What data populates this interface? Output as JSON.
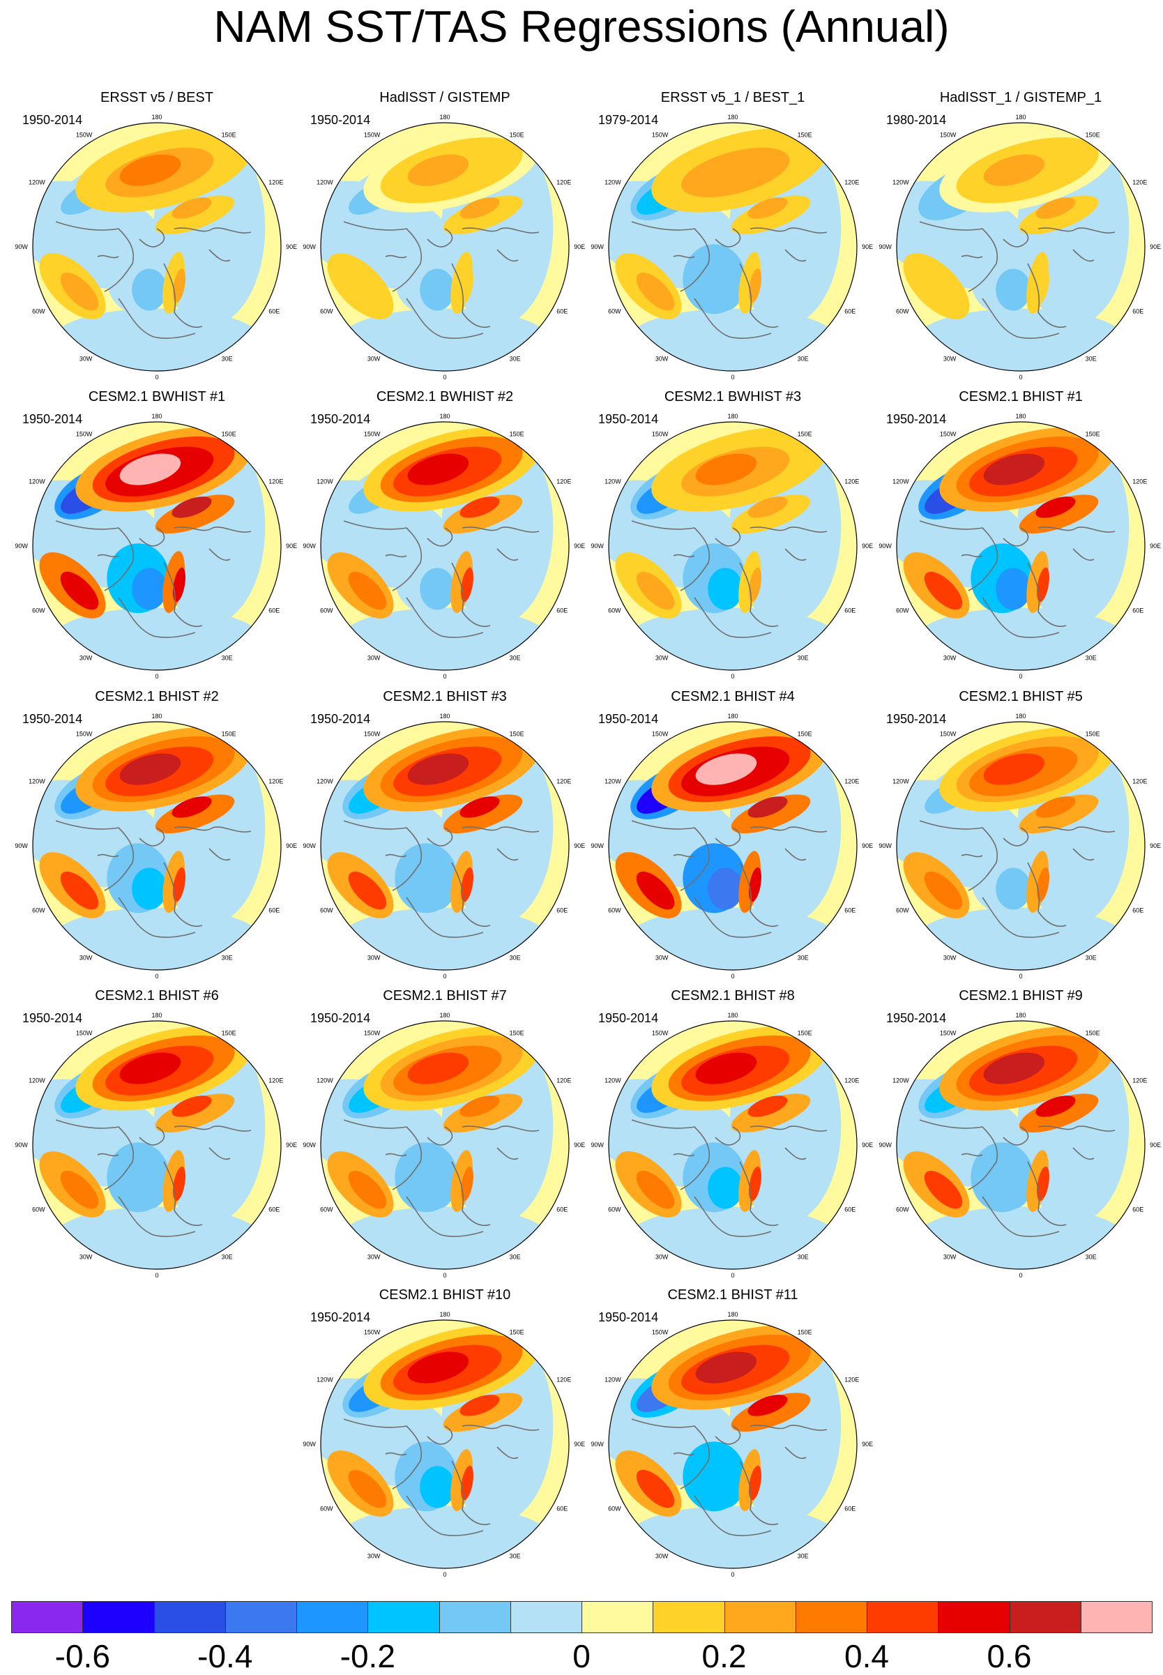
{
  "title": "NAM SST/TAS Regressions (Annual)",
  "lon_labels": {
    "top": "180",
    "bottom": "0",
    "lon150w": "150W",
    "lon150e": "150E",
    "lon120w": "120W",
    "lon120e": "120E",
    "lon90w": "90W",
    "lon90e": "90E",
    "lon60w": "60W",
    "lon60e": "60E",
    "lon30w": "30W",
    "lon30e": "30E"
  },
  "colors": {
    "land_coast": "#6f6f6f",
    "outline": "#000000",
    "base": "#fffa9e"
  },
  "panels": [
    {
      "title": "ERSST v5 / BEST",
      "period": "1950-2014",
      "amplitude": 0.35,
      "ao": -0.1
    },
    {
      "title": "HadISST / GISTEMP",
      "period": "1950-2014",
      "amplitude": 0.25,
      "ao": -0.1
    },
    {
      "title": "ERSST v5_1 / BEST_1",
      "period": "1979-2014",
      "amplitude": 0.3,
      "ao": -0.15
    },
    {
      "title": "HadISST_1 / GISTEMP_1",
      "period": "1980-2014",
      "amplitude": 0.25,
      "ao": -0.12
    },
    {
      "title": "CESM2.1 BWHIST #1",
      "period": "1950-2014",
      "amplitude": 0.75,
      "ao": -0.35
    },
    {
      "title": "CESM2.1 BWHIST #2",
      "period": "1950-2014",
      "amplitude": 0.55,
      "ao": -0.1
    },
    {
      "title": "CESM2.1 BWHIST #3",
      "period": "1950-2014",
      "amplitude": 0.35,
      "ao": -0.2
    },
    {
      "title": "CESM2.1 BHIST #1",
      "period": "1950-2014",
      "amplitude": 0.65,
      "ao": -0.35
    },
    {
      "title": "CESM2.1 BHIST #2",
      "period": "1950-2014",
      "amplitude": 0.65,
      "ao": -0.2
    },
    {
      "title": "CESM2.1 BHIST #3",
      "period": "1950-2014",
      "amplitude": 0.65,
      "ao": -0.15
    },
    {
      "title": "CESM2.1 BHIST #4",
      "period": "1950-2014",
      "amplitude": 0.75,
      "ao": -0.4
    },
    {
      "title": "CESM2.1 BHIST #5",
      "period": "1950-2014",
      "amplitude": 0.45,
      "ao": -0.1
    },
    {
      "title": "CESM2.1 BHIST #6",
      "period": "1950-2014",
      "amplitude": 0.55,
      "ao": -0.15
    },
    {
      "title": "CESM2.1 BHIST #7",
      "period": "1950-2014",
      "amplitude": 0.45,
      "ao": -0.15
    },
    {
      "title": "CESM2.1 BHIST #8",
      "period": "1950-2014",
      "amplitude": 0.55,
      "ao": -0.2
    },
    {
      "title": "CESM2.1 BHIST #9",
      "period": "1950-2014",
      "amplitude": 0.65,
      "ao": -0.15
    },
    {
      "title": "CESM2.1 BHIST #10",
      "period": "1950-2014",
      "amplitude": 0.55,
      "ao": -0.2
    },
    {
      "title": "CESM2.1 BHIST #11",
      "period": "1950-2014",
      "amplitude": 0.65,
      "ao": -0.25
    }
  ],
  "colorbar": {
    "colors": [
      "#8a28f0",
      "#1e00ff",
      "#2a4fe6",
      "#3c78f0",
      "#1e96ff",
      "#00c4ff",
      "#73c8f5",
      "#b4e1f5",
      "#fffa9e",
      "#ffd22a",
      "#ffa81e",
      "#ff7a00",
      "#ff3c00",
      "#e60000",
      "#c81e1e",
      "#ffb4b4"
    ],
    "ticks": [
      {
        "label": "-0.6",
        "index": 1
      },
      {
        "label": "-0.4",
        "index": 3
      },
      {
        "label": "-0.2",
        "index": 5
      },
      {
        "label": "0",
        "index": 8
      },
      {
        "label": "0.2",
        "index": 10
      },
      {
        "label": "0.4",
        "index": 12
      },
      {
        "label": "0.6",
        "index": 14
      }
    ]
  }
}
